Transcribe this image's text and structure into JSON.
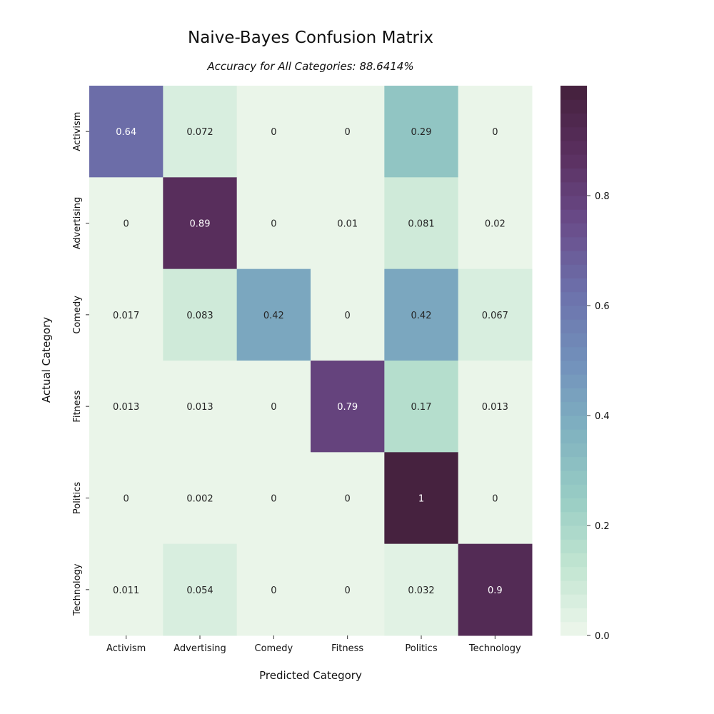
{
  "chart_data": {
    "type": "heatmap",
    "title": "Naive-Bayes Confusion Matrix",
    "subtitle": "Accuracy for All Categories: 88.6414%",
    "xlabel": "Predicted Category",
    "ylabel": "Actual Category",
    "x_categories": [
      "Activism",
      "Advertising",
      "Comedy",
      "Fitness",
      "Politics",
      "Technology"
    ],
    "y_categories": [
      "Activism",
      "Advertising",
      "Comedy",
      "Fitness",
      "Politics",
      "Technology"
    ],
    "values": [
      [
        0.64,
        0.072,
        0,
        0,
        0.29,
        0
      ],
      [
        0,
        0.89,
        0,
        0.01,
        0.081,
        0.02
      ],
      [
        0.017,
        0.083,
        0.42,
        0,
        0.42,
        0.067
      ],
      [
        0.013,
        0.013,
        0,
        0.79,
        0.17,
        0.013
      ],
      [
        0,
        0.002,
        0,
        0,
        1,
        0
      ],
      [
        0.011,
        0.054,
        0,
        0,
        0.032,
        0.9
      ]
    ],
    "colorbar": {
      "range": [
        0,
        1
      ],
      "ticks": [
        0.0,
        0.2,
        0.4,
        0.6,
        0.8
      ],
      "tick_labels": [
        "0.0",
        "0.2",
        "0.4",
        "0.6",
        "0.8"
      ],
      "levels": 40
    },
    "colormap_stops": [
      "#eef7ec",
      "#c2e5d1",
      "#98cdc4",
      "#7fb1c0",
      "#7290bb",
      "#6c71ab",
      "#6a4c8a",
      "#5a2f5f",
      "#44213c"
    ]
  }
}
